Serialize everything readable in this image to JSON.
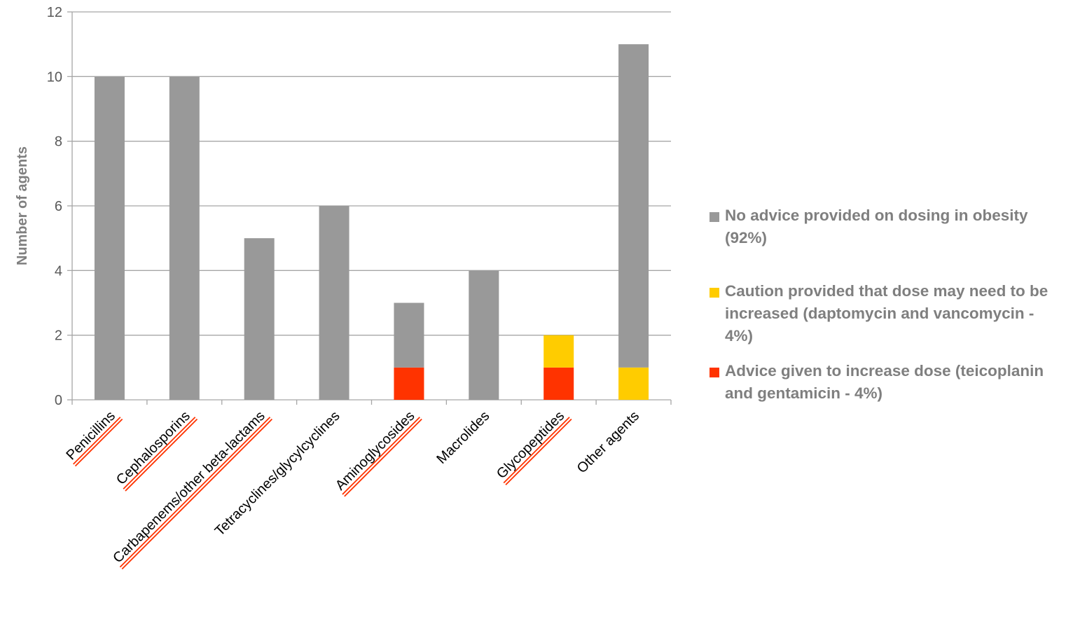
{
  "chart_data": {
    "type": "bar",
    "stacked": true,
    "categories": [
      "Penicillins",
      "Cephalosporins",
      "Carbapenems/other beta-lactams",
      "Tetracyclines/glycylcyclines",
      "Aminoglycosides",
      "Macrolides",
      "Glycopeptides",
      "Other agents"
    ],
    "underlined_categories": [
      "Penicillins",
      "Cephalosporins",
      "Carbapenems/other beta-lactams",
      "Aminoglycosides",
      "Glycopeptides"
    ],
    "series": [
      {
        "name": "Advice given to increase dose (teicoplanin and gentamicin - 4%)",
        "color": "#ff3300",
        "values": [
          0,
          0,
          0,
          0,
          1,
          0,
          1,
          0
        ]
      },
      {
        "name": "Caution provided that dose may need to be increased (daptomycin and vancomycin - 4%)",
        "color": "#ffcc00",
        "values": [
          0,
          0,
          0,
          0,
          0,
          0,
          1,
          1
        ]
      },
      {
        "name": "No advice provided on dosing in obesity (92%)",
        "color": "#999999",
        "values": [
          10,
          10,
          5,
          6,
          2,
          4,
          0,
          10
        ]
      }
    ],
    "legend_order": [
      2,
      1,
      0
    ],
    "ylabel": "Number of agents",
    "ylim": [
      0,
      12
    ],
    "yticks": [
      0,
      2,
      4,
      6,
      8,
      10,
      12
    ],
    "grid": true,
    "legend_position": "right",
    "underline_color": "#ff3300"
  }
}
